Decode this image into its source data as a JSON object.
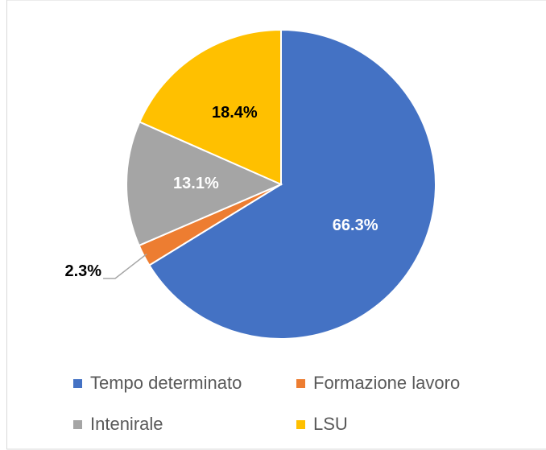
{
  "chart_data": {
    "type": "pie",
    "categories": [
      "Tempo determinato",
      "Formazione lavoro",
      "Intenirale",
      "LSU"
    ],
    "values": [
      66.3,
      2.3,
      13.1,
      18.4
    ],
    "value_labels": [
      "66.3%",
      "2.3%",
      "13.1%",
      "18.4%"
    ],
    "colors": [
      "#4472c4",
      "#ed7d31",
      "#a5a5a5",
      "#ffc000"
    ],
    "label_colors": [
      "#ffffff",
      "#000000",
      "#ffffff",
      "#000000"
    ]
  }
}
